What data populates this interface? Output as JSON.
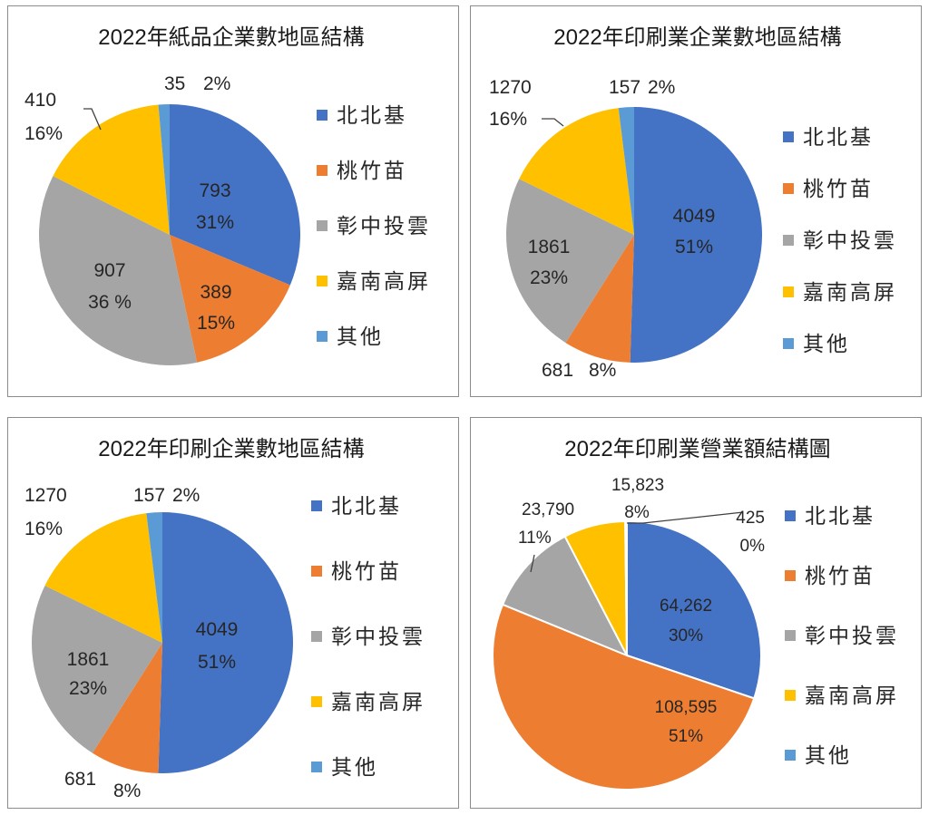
{
  "colors": {
    "北北基": "#4472c4",
    "桃竹苗": "#ed7d31",
    "彰中投雲": "#a5a5a5",
    "嘉南高屏": "#ffc000",
    "其他": "#5b9bd5"
  },
  "chart_data": [
    {
      "type": "pie",
      "title": "2022年紙品企業數地區結構",
      "categories": [
        "北北基",
        "桃竹苗",
        "彰中投雲",
        "嘉南高屏",
        "其他"
      ],
      "values": [
        793,
        389,
        907,
        410,
        35
      ],
      "value_labels": [
        "793",
        "389",
        "907",
        "410",
        "35"
      ],
      "percent_labels": [
        "31%",
        "15%",
        "36 %",
        "16%",
        "2%"
      ],
      "legend_position": "right"
    },
    {
      "type": "pie",
      "title": "2022年印刷業企業數地區結構",
      "categories": [
        "北北基",
        "桃竹苗",
        "彰中投雲",
        "嘉南高屏",
        "其他"
      ],
      "values": [
        4049,
        681,
        1861,
        1270,
        157
      ],
      "value_labels": [
        "4049",
        "681",
        "1861",
        "1270",
        "157"
      ],
      "percent_labels": [
        "51%",
        "8%",
        "23%",
        "16%",
        "2%"
      ],
      "legend_position": "right"
    },
    {
      "type": "pie",
      "title": "2022年印刷企業數地區結構",
      "categories": [
        "北北基",
        "桃竹苗",
        "彰中投雲",
        "嘉南高屏",
        "其他"
      ],
      "values": [
        4049,
        681,
        1861,
        1270,
        157
      ],
      "value_labels": [
        "4049",
        "681",
        "1861",
        "1270",
        "157"
      ],
      "percent_labels": [
        "51%",
        "8%",
        "23%",
        "16%",
        "2%"
      ],
      "legend_position": "right"
    },
    {
      "type": "pie",
      "title": "2022年印刷業營業額結構圖",
      "categories": [
        "北北基",
        "桃竹苗",
        "彰中投雲",
        "嘉南高屏",
        "其他"
      ],
      "values": [
        64262,
        108595,
        23790,
        15823,
        425
      ],
      "value_labels": [
        "64,262",
        "108,595",
        "23,790",
        "15,823",
        "425"
      ],
      "percent_labels": [
        "30%",
        "51%",
        "11%",
        "8%",
        "0%"
      ],
      "legend_position": "right"
    }
  ]
}
